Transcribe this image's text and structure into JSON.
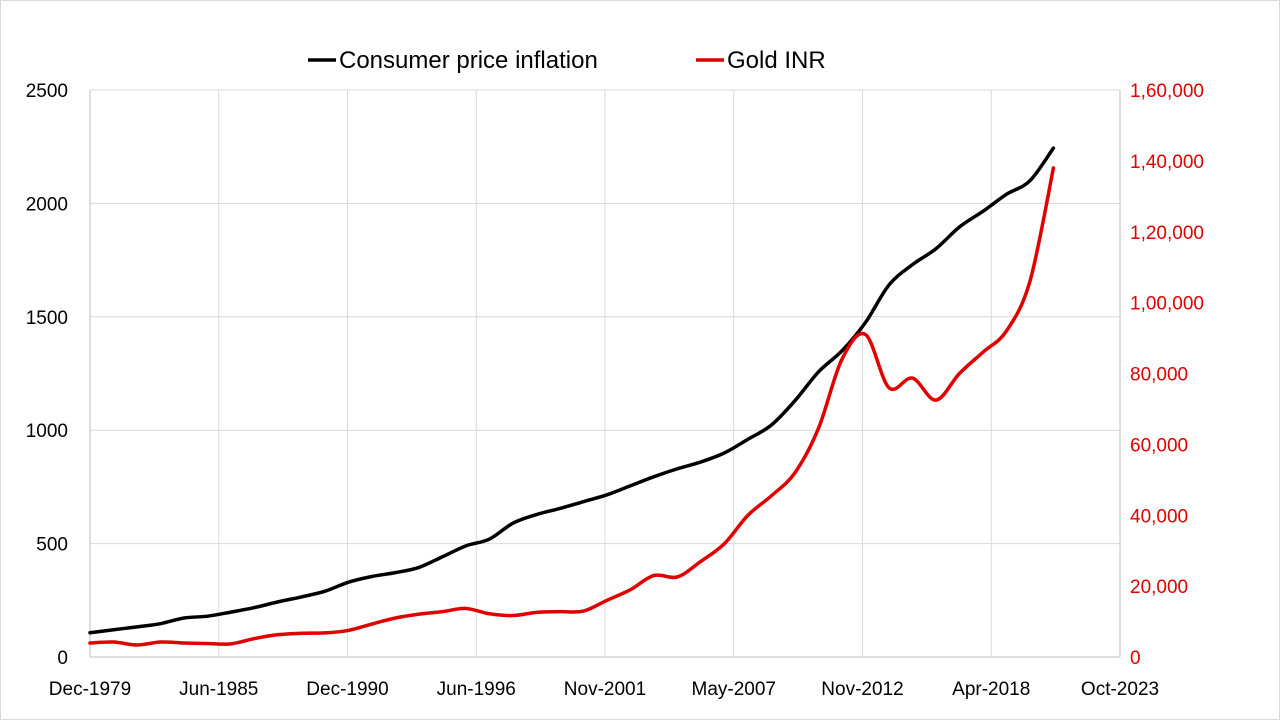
{
  "chart_data": {
    "type": "line",
    "title": "",
    "legend": {
      "placement": "top",
      "entries": [
        "Consumer price inflation",
        "Gold INR"
      ]
    },
    "grid": true,
    "x": [
      "1979-12",
      "1980-12",
      "1981-12",
      "1982-12",
      "1983-12",
      "1984-12",
      "1985-12",
      "1986-12",
      "1987-12",
      "1988-12",
      "1989-12",
      "1990-12",
      "1991-12",
      "1992-12",
      "1993-12",
      "1994-12",
      "1995-12",
      "1996-12",
      "1997-12",
      "1998-12",
      "1999-12",
      "2000-12",
      "2001-12",
      "2002-12",
      "2003-12",
      "2004-12",
      "2005-12",
      "2006-12",
      "2007-12",
      "2008-12",
      "2009-12",
      "2010-12",
      "2011-12",
      "2012-12",
      "2013-12",
      "2014-12",
      "2015-12",
      "2016-12",
      "2017-12",
      "2018-12",
      "2019-12",
      "2020-12"
    ],
    "xlim": [
      "1979-12",
      "2023-10"
    ],
    "x_tick_labels": [
      "Dec-1979",
      "Jun-1985",
      "Dec-1990",
      "Jun-1996",
      "Nov-2001",
      "May-2007",
      "Nov-2012",
      "Apr-2018",
      "Oct-2023"
    ],
    "y_left": {
      "lim": [
        0,
        2500
      ],
      "ticks": [
        0,
        500,
        1000,
        1500,
        2000,
        2500
      ],
      "tick_labels": [
        "0",
        "500",
        "1000",
        "1500",
        "2000",
        "2500"
      ]
    },
    "y_right": {
      "lim": [
        0,
        160000
      ],
      "ticks": [
        0,
        20000,
        40000,
        60000,
        80000,
        100000,
        120000,
        140000,
        160000
      ],
      "tick_labels": [
        "0",
        "20,000",
        "40,000",
        "60,000",
        "80,000",
        "1,00,000",
        "1,20,000",
        "1,40,000",
        "1,60,000"
      ],
      "color": "#e00000"
    },
    "series": [
      {
        "name": "Consumer price inflation",
        "axis": "left",
        "color": "#000000",
        "values": [
          107,
          120,
          133,
          147,
          172,
          180,
          198,
          218,
          243,
          265,
          290,
          330,
          355,
          372,
          395,
          442,
          490,
          520,
          590,
          628,
          655,
          685,
          715,
          755,
          795,
          830,
          860,
          900,
          960,
          1023,
          1130,
          1257,
          1350,
          1475,
          1640,
          1730,
          1800,
          1896,
          1965,
          2040,
          2100,
          2244
        ]
      },
      {
        "name": "Gold INR",
        "axis": "right",
        "color": "#e00000",
        "values": [
          3950,
          4230,
          3390,
          4230,
          3950,
          3800,
          3700,
          5200,
          6300,
          6700,
          6800,
          7500,
          9300,
          11000,
          12100,
          12800,
          13700,
          12200,
          11700,
          12600,
          12800,
          12950,
          16000,
          19000,
          23000,
          22600,
          27000,
          32000,
          40000,
          45500,
          52000,
          64500,
          84000,
          91000,
          76000,
          78700,
          72500,
          80000,
          86000,
          92000,
          106000,
          138000
        ]
      }
    ]
  }
}
